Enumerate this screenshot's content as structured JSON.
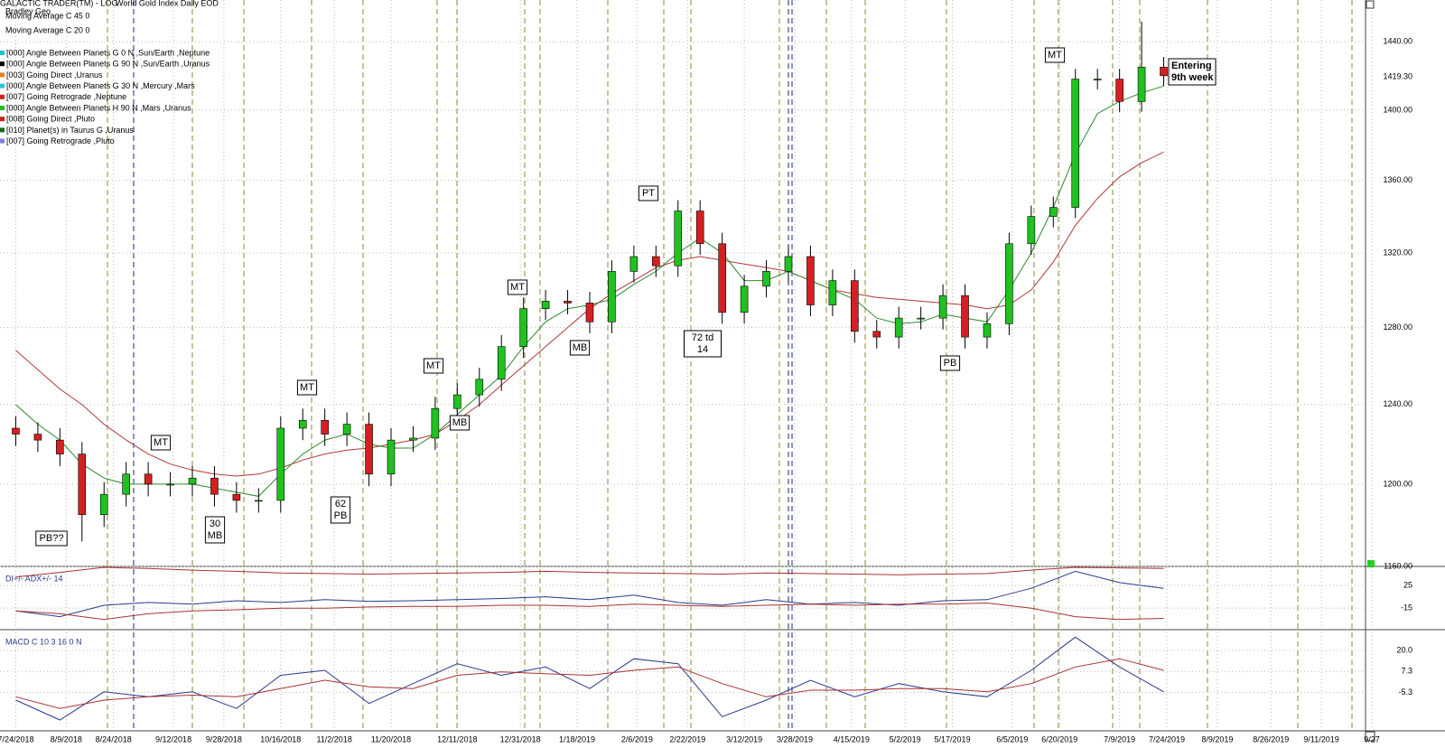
{
  "chart_data": [
    {
      "type": "candlestick",
      "title": "GALACTIC TRADER(TM) - LOG",
      "subtitle": "World Gold Index Daily EOD",
      "log_scale": true,
      "grid": true,
      "x": [
        "7/24/2018",
        "7/31/2018",
        "8/7/2018",
        "8/14/2018",
        "8/21/2018",
        "8/28/2018",
        "9/4/2018",
        "9/11/2018",
        "9/18/2018",
        "9/25/2018",
        "10/2/2018",
        "10/9/2018",
        "10/16/2018",
        "10/23/2018",
        "10/30/2018",
        "11/6/2018",
        "11/13/2018",
        "11/20/2018",
        "11/27/2018",
        "12/4/2018",
        "12/11/2018",
        "12/18/2018",
        "12/25/2018",
        "1/1/2019",
        "1/8/2019",
        "1/15/2019",
        "1/22/2019",
        "1/29/2019",
        "2/5/2019",
        "2/12/2019",
        "2/19/2019",
        "2/26/2019",
        "3/5/2019",
        "3/12/2019",
        "3/19/2019",
        "3/26/2019",
        "4/2/2019",
        "4/9/2019",
        "4/16/2019",
        "4/23/2019",
        "4/30/2019",
        "5/7/2019",
        "5/14/2019",
        "5/21/2019",
        "5/28/2019",
        "6/4/2019",
        "6/11/2019",
        "6/18/2019",
        "6/25/2019",
        "7/2/2019",
        "7/9/2019",
        "7/16/2019",
        "7/23/2019"
      ],
      "open": [
        1228,
        1225,
        1222,
        1215,
        1185,
        1195,
        1205,
        1200,
        1200,
        1203,
        1195,
        1192,
        1192,
        1228,
        1232,
        1225,
        1230,
        1205,
        1222,
        1223,
        1238,
        1245,
        1253,
        1270,
        1290,
        1294,
        1293,
        1283,
        1310,
        1318,
        1313,
        1343,
        1325,
        1288,
        1302,
        1310,
        1318,
        1292,
        1305,
        1278,
        1275,
        1285,
        1285,
        1297,
        1275,
        1282,
        1325,
        1340,
        1345,
        1418,
        1418,
        1405,
        1425
      ],
      "high": [
        1234,
        1231,
        1228,
        1221,
        1201,
        1211,
        1211,
        1206,
        1209,
        1209,
        1201,
        1198,
        1234,
        1238,
        1238,
        1236,
        1236,
        1228,
        1229,
        1244,
        1251,
        1259,
        1276,
        1296,
        1300,
        1300,
        1299,
        1316,
        1324,
        1324,
        1349,
        1349,
        1331,
        1308,
        1316,
        1324,
        1324,
        1311,
        1311,
        1284,
        1291,
        1291,
        1303,
        1303,
        1288,
        1331,
        1346,
        1351,
        1424,
        1424,
        1424,
        1452,
        1431
      ],
      "low": [
        1219,
        1216,
        1209,
        1172,
        1179,
        1189,
        1194,
        1194,
        1194,
        1189,
        1186,
        1186,
        1186,
        1222,
        1219,
        1219,
        1199,
        1199,
        1216,
        1217,
        1232,
        1239,
        1247,
        1264,
        1284,
        1287,
        1277,
        1277,
        1304,
        1307,
        1307,
        1319,
        1282,
        1282,
        1296,
        1304,
        1286,
        1286,
        1272,
        1269,
        1269,
        1279,
        1279,
        1269,
        1269,
        1276,
        1319,
        1334,
        1339,
        1412,
        1399,
        1399,
        1414
      ],
      "close": [
        1225,
        1222,
        1215,
        1185,
        1195,
        1205,
        1200,
        1200,
        1203,
        1195,
        1192,
        1192,
        1228,
        1232,
        1225,
        1230,
        1205,
        1222,
        1223,
        1238,
        1245,
        1253,
        1270,
        1290,
        1294,
        1293,
        1283,
        1310,
        1318,
        1313,
        1343,
        1325,
        1288,
        1302,
        1310,
        1318,
        1292,
        1305,
        1278,
        1275,
        1285,
        1285,
        1297,
        1275,
        1282,
        1325,
        1340,
        1345,
        1418,
        1418,
        1405,
        1425,
        1420
      ],
      "up_color": "#1fc21f",
      "down_color": "#d42020",
      "series": [
        {
          "name": "Moving Average C 45 0",
          "color": "#b03838",
          "values": [
            1268,
            1258,
            1248,
            1240,
            1230,
            1222,
            1215,
            1210,
            1207,
            1205,
            1204,
            1205,
            1208,
            1212,
            1215,
            1217,
            1218,
            1220,
            1222,
            1225,
            1232,
            1240,
            1250,
            1260,
            1270,
            1280,
            1290,
            1298,
            1305,
            1312,
            1316,
            1318,
            1316,
            1314,
            1312,
            1310,
            1305,
            1300,
            1298,
            1296,
            1295,
            1294,
            1293,
            1292,
            1290,
            1292,
            1300,
            1315,
            1335,
            1350,
            1362,
            1370,
            1376
          ]
        },
        {
          "name": "Moving Average C 20 0",
          "color": "#2e8a2e",
          "values": [
            1240,
            1230,
            1222,
            1210,
            1203,
            1200,
            1200,
            1200,
            1200,
            1198,
            1196,
            1194,
            1205,
            1215,
            1222,
            1225,
            1220,
            1218,
            1218,
            1225,
            1235,
            1245,
            1255,
            1270,
            1283,
            1290,
            1292,
            1295,
            1303,
            1310,
            1320,
            1328,
            1320,
            1305,
            1305,
            1310,
            1305,
            1300,
            1295,
            1285,
            1282,
            1283,
            1287,
            1285,
            1283,
            1300,
            1320,
            1345,
            1375,
            1398,
            1405,
            1410,
            1414
          ]
        }
      ],
      "studies": [
        {
          "name": "Bradley Geo",
          "color": "#7030a0"
        },
        {
          "name": "[000] Angle Between Planets G 0 N ,Sun/Earth ,Neptune",
          "color": "#22c0d0"
        },
        {
          "name": "[000] Angle Between Planets G 90 N ,Sun/Earth ,Uranus",
          "color": "#000000"
        },
        {
          "name": "[003] Going Direct ,Uranus",
          "color": "#e08020"
        },
        {
          "name": "[000] Angle Between Planets G 30 N ,Mercury ,Mars",
          "color": "#30c0e0"
        },
        {
          "name": "[007] Going Retrograde ,Neptune",
          "color": "#d02020"
        },
        {
          "name": "[000] Angle Between Planets H 90 N ,Mars ,Uranus",
          "color": "#20c020"
        },
        {
          "name": "[008] Going Direct ,Pluto",
          "color": "#c02020"
        },
        {
          "name": "[010] Planet(s) in Taurus G ,Uranus",
          "color": "#1a6a1a"
        },
        {
          "name": "[007] Going Retrograde ,Pluto",
          "color": "#8080e0"
        }
      ],
      "annotations": [
        {
          "lines": [
            "PB??"
          ]
        },
        {
          "lines": [
            "MT"
          ]
        },
        {
          "lines": [
            "30",
            "MB"
          ]
        },
        {
          "lines": [
            "MT"
          ]
        },
        {
          "lines": [
            "62",
            "PB"
          ]
        },
        {
          "lines": [
            "MT"
          ]
        },
        {
          "lines": [
            "MB"
          ]
        },
        {
          "lines": [
            "MT"
          ]
        },
        {
          "lines": [
            "MB"
          ]
        },
        {
          "lines": [
            "PT"
          ]
        },
        {
          "lines": [
            "72 td",
            "14"
          ]
        },
        {
          "lines": [
            "PB"
          ]
        },
        {
          "lines": [
            "MT"
          ]
        },
        {
          "lines": [
            "Entering",
            "9th week"
          ]
        }
      ],
      "last_value": {
        "value": 1419.3,
        "label": "1419.30"
      },
      "xlim": [
        "7/19/2018",
        "9/25/2019"
      ],
      "xticks": [
        "7/24/2018",
        "8/9/2018",
        "8/24/2018",
        "9/12/2018",
        "9/28/2018",
        "10/16/2018",
        "11/2/2018",
        "11/20/2018",
        "12/11/2018",
        "12/31/2018",
        "1/18/2019",
        "2/6/2019",
        "2/22/2019",
        "3/12/2019",
        "3/28/2019",
        "4/15/2019",
        "5/2/2019",
        "5/17/2019",
        "6/5/2019",
        "6/20/2019",
        "7/9/2019",
        "7/24/2019",
        "8/9/2019",
        "8/26/2019",
        "9/11/2019",
        {
          "value": "9/27/2019",
          "label": "9/27"
        }
      ],
      "ylim": [
        1160,
        1465
      ],
      "yticks": [
        {
          "value": 1160,
          "label": "1160.00"
        },
        {
          "value": 1200,
          "label": "1200.00"
        },
        {
          "value": 1240,
          "label": "1240.00"
        },
        {
          "value": 1280,
          "label": "1280.00"
        },
        {
          "value": 1320,
          "label": "1320.00"
        },
        {
          "value": 1360,
          "label": "1360.00"
        },
        {
          "value": 1400,
          "label": "1400.00"
        },
        {
          "value": 1440,
          "label": "1440.00"
        }
      ]
    },
    {
      "type": "line",
      "title": "DI+/- ADX+/- 14",
      "x": [
        "7/24/2018",
        "8/7/2018",
        "8/21/2018",
        "9/4/2018",
        "9/18/2018",
        "10/2/2018",
        "10/16/2018",
        "10/30/2018",
        "11/13/2018",
        "11/27/2018",
        "12/11/2018",
        "12/25/2018",
        "1/8/2019",
        "1/22/2019",
        "2/5/2019",
        "2/19/2019",
        "3/5/2019",
        "3/19/2019",
        "4/2/2019",
        "4/16/2019",
        "4/30/2019",
        "5/14/2019",
        "5/28/2019",
        "6/11/2019",
        "6/25/2019",
        "7/9/2019",
        "7/23/2019"
      ],
      "series": [
        {
          "color": "#a83232",
          "values": [
            40,
            48,
            57,
            55,
            52,
            50,
            47,
            46,
            45,
            46,
            47,
            48,
            50,
            48,
            47,
            46,
            45,
            47,
            46,
            45,
            44,
            45,
            46,
            52,
            57,
            56,
            55
          ]
        },
        {
          "color": "#2a3a8a",
          "values": [
            -20,
            -30,
            -10,
            -5,
            -8,
            -2,
            -5,
            0,
            -3,
            -2,
            0,
            2,
            5,
            0,
            8,
            -5,
            -10,
            0,
            -8,
            -5,
            -10,
            -2,
            0,
            20,
            50,
            30,
            20
          ]
        },
        {
          "color": "#a83232",
          "values": [
            -20,
            -25,
            -35,
            -25,
            -20,
            -18,
            -15,
            -15,
            -13,
            -12,
            -12,
            -10,
            -10,
            -12,
            -8,
            -10,
            -12,
            -10,
            -8,
            -10,
            -8,
            -8,
            -6,
            -15,
            -30,
            -35,
            -33
          ]
        }
      ],
      "ylim": [
        -53,
        57
      ],
      "yticks": [
        25,
        -15
      ]
    },
    {
      "type": "line",
      "title": "MACD C 10 3 16 0 N",
      "x": [
        "7/24/2018",
        "8/7/2018",
        "8/21/2018",
        "9/4/2018",
        "9/18/2018",
        "10/2/2018",
        "10/16/2018",
        "10/30/2018",
        "11/13/2018",
        "11/27/2018",
        "12/11/2018",
        "12/25/2018",
        "1/8/2019",
        "1/22/2019",
        "2/5/2019",
        "2/19/2019",
        "3/5/2019",
        "3/19/2019",
        "4/2/2019",
        "4/16/2019",
        "4/30/2019",
        "5/14/2019",
        "5/28/2019",
        "6/11/2019",
        "6/25/2019",
        "7/9/2019",
        "7/23/2019"
      ],
      "series": [
        {
          "color": "#2a3a8a",
          "values": [
            -10,
            -22,
            -5,
            -8,
            -5,
            -15,
            5,
            8,
            -12,
            0,
            12,
            5,
            10,
            -3,
            15,
            12,
            -20,
            -10,
            2,
            -8,
            0,
            -5,
            -8,
            8,
            28,
            10,
            -5
          ]
        },
        {
          "color": "#a83232",
          "values": [
            -8,
            -15,
            -10,
            -8,
            -7,
            -8,
            -3,
            2,
            -2,
            -3,
            5,
            7,
            6,
            5,
            8,
            10,
            0,
            -8,
            -4,
            -4,
            -3,
            -3,
            -5,
            0,
            10,
            15,
            8
          ]
        }
      ],
      "ylim": [
        -28,
        32
      ],
      "yticks": [
        {
          "value": 20,
          "label": "20.0"
        },
        7.3,
        -5.3
      ]
    }
  ]
}
